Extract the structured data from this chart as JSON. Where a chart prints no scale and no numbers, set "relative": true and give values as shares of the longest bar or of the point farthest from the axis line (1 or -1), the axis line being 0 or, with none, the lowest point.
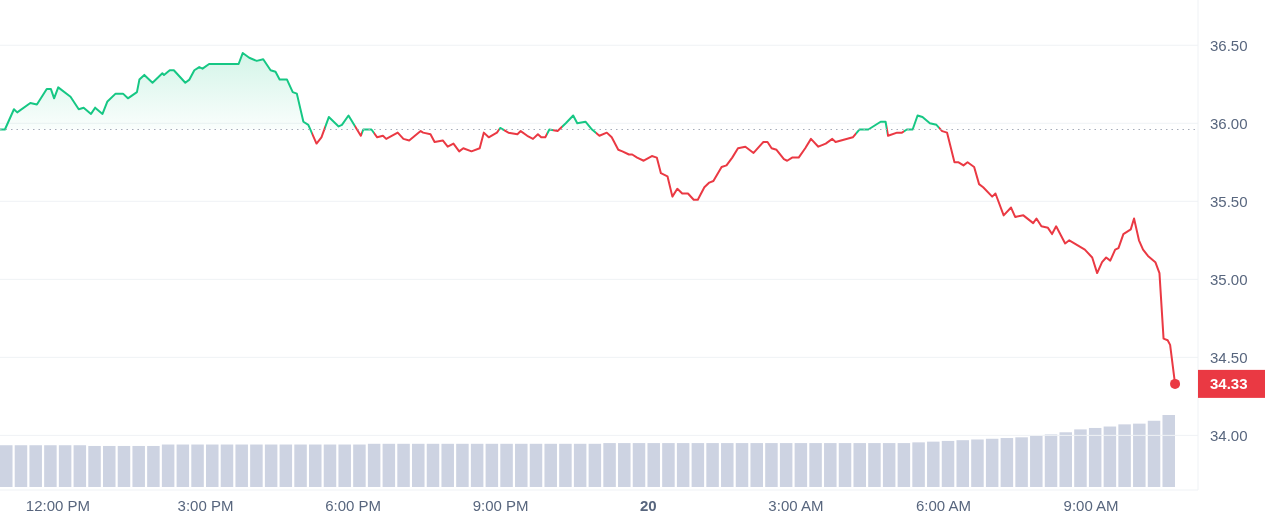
{
  "chart_data": [
    {
      "type": "area",
      "xlim": [
        "--01-19T10:50",
        "--01-20T11:11"
      ],
      "ylim": [
        33.65,
        36.79
      ],
      "xticks": [
        {
          "value": "--01-19T12:00",
          "label": "12:00 PM"
        },
        {
          "value": "--01-19T15:00",
          "label": "3:00 PM"
        },
        {
          "value": "--01-19T18:00",
          "label": "6:00 PM"
        },
        {
          "value": "--01-19T21:00",
          "label": "9:00 PM"
        },
        {
          "value": "--01-20T00:00",
          "label": "20"
        },
        {
          "value": "--01-20T03:00",
          "label": "3:00 AM"
        },
        {
          "value": "--01-20T06:00",
          "label": "6:00 AM"
        },
        {
          "value": "--01-20T09:00",
          "label": "9:00 AM"
        }
      ],
      "yticks": [
        {
          "value": 34,
          "label": "34.00"
        },
        {
          "value": 34.5,
          "label": "34.50"
        },
        {
          "value": 35,
          "label": "35.00"
        },
        {
          "value": 35.5,
          "label": "35.50"
        },
        {
          "value": 36,
          "label": "36.00"
        },
        {
          "value": 36.5,
          "label": "36.50"
        }
      ],
      "grid": "y",
      "ref_lines": [
        {
          "axis": "y",
          "value": 35.96,
          "color": "#a6acb9",
          "line_style": "dotted"
        }
      ],
      "annotations": [
        {
          "text": "34.33",
          "x": "--01-20T10:43",
          "y": 34.33
        }
      ],
      "series": [
        {
          "colors": [
            "#16c784",
            "#16c784",
            "#16c784",
            "#16c784",
            "#16c784",
            "#16c784",
            "#16c784",
            "#16c784",
            "#16c784",
            "#16c784",
            "#16c784",
            "#16c784",
            "#16c784",
            "#16c784",
            "#16c784",
            "#16c784",
            "#16c784",
            "#16c784",
            "#16c784",
            "#16c784",
            "#16c784",
            "#16c784",
            "#16c784",
            "#16c784",
            "#16c784",
            "#16c784",
            "#16c784",
            "#16c784",
            "#16c784",
            "#16c784",
            "#16c784",
            "#16c784",
            "#16c784",
            "#16c784",
            "#16c784",
            "#16c784",
            "#16c784",
            "#16c784",
            "#16c784",
            "#16c784",
            "#16c784",
            "#16c784",
            "#16c784",
            "#16c784",
            "#16c784",
            "#16c784",
            "#16c784",
            "#16c784",
            "#16c784",
            "#16c784",
            "#ea3943",
            "#ea3943",
            "#16c784",
            "#16c784",
            "#16c784",
            "#16c784",
            "#ea3943",
            "#16c784",
            "#16c784",
            "#ea3943",
            "#ea3943",
            "#ea3943",
            "#ea3943",
            "#ea3943",
            "#ea3943",
            "#ea3943",
            "#ea3943",
            "#ea3943",
            "#ea3943",
            "#ea3943",
            "#ea3943",
            "#ea3943",
            "#ea3943",
            "#ea3943",
            "#ea3943",
            "#ea3943",
            "#ea3943",
            "#ea3943",
            "#ea3943",
            "#16c784",
            "#ea3943",
            "#ea3943",
            "#ea3943",
            "#ea3943",
            "#ea3943",
            "#ea3943",
            "#ea3943",
            "#ea3943",
            "#16c784",
            "#ea3943",
            "#16c784",
            "#16c784",
            "#16c784",
            "#16c784",
            "#16c784",
            "#ea3943",
            "#ea3943",
            "#ea3943",
            "#ea3943",
            "#ea3943",
            "#ea3943",
            "#ea3943",
            "#ea3943",
            "#ea3943",
            "#ea3943",
            "#ea3943",
            "#ea3943",
            "#ea3943",
            "#ea3943",
            "#ea3943",
            "#ea3943",
            "#ea3943",
            "#ea3943",
            "#ea3943",
            "#ea3943",
            "#ea3943",
            "#ea3943",
            "#ea3943",
            "#ea3943",
            "#ea3943",
            "#ea3943",
            "#ea3943",
            "#ea3943",
            "#ea3943",
            "#ea3943",
            "#ea3943",
            "#ea3943",
            "#ea3943",
            "#ea3943",
            "#ea3943",
            "#ea3943",
            "#ea3943",
            "#ea3943",
            "#ea3943",
            "#ea3943",
            "#ea3943",
            "#ea3943",
            "#ea3943",
            "#16c784",
            "#16c784",
            "#16c784",
            "#16c784",
            "#ea3943",
            "#ea3943",
            "#ea3943",
            "#16c784",
            "#16c784",
            "#16c784",
            "#16c784",
            "#16c784",
            "#16c784",
            "#ea3943",
            "#ea3943",
            "#ea3943",
            "#ea3943",
            "#ea3943",
            "#ea3943",
            "#ea3943",
            "#ea3943",
            "#ea3943",
            "#ea3943",
            "#ea3943",
            "#ea3943",
            "#ea3943",
            "#ea3943",
            "#ea3943",
            "#ea3943",
            "#ea3943",
            "#ea3943",
            "#ea3943",
            "#ea3943",
            "#ea3943",
            "#ea3943",
            "#ea3943",
            "#ea3943",
            "#ea3943",
            "#ea3943",
            "#ea3943",
            "#ea3943",
            "#ea3943",
            "#ea3943",
            "#ea3943",
            "#ea3943",
            "#ea3943",
            "#ea3943",
            "#ea3943",
            "#ea3943",
            "#ea3943",
            "#ea3943",
            "#ea3943",
            "#ea3943",
            "#ea3943",
            "#ea3943",
            "#ea3943"
          ],
          "x": [
            "--01-19T10:50",
            "--01-19T10:56",
            "--01-19T11:07",
            "--01-19T11:11",
            "--01-19T11:27",
            "--01-19T11:35",
            "--01-19T11:47",
            "--01-19T11:52",
            "--01-19T11:56",
            "--01-19T12:01",
            "--01-19T12:16",
            "--01-19T12:26",
            "--01-19T12:32",
            "--01-19T12:41",
            "--01-19T12:46",
            "--01-19T12:55",
            "--01-19T13:01",
            "--01-19T13:11",
            "--01-19T13:20",
            "--01-19T13:26",
            "--01-19T13:37",
            "--01-19T13:40",
            "--01-19T13:46",
            "--01-19T13:56",
            "--01-19T14:08",
            "--01-19T14:10",
            "--01-19T14:17",
            "--01-19T14:22",
            "--01-19T14:36",
            "--01-19T14:41",
            "--01-19T14:47",
            "--01-19T14:53",
            "--01-19T14:57",
            "--01-19T15:05",
            "--01-19T15:17",
            "--01-19T15:28",
            "--01-19T15:35",
            "--01-19T15:41",
            "--01-19T15:46",
            "--01-19T15:54",
            "--01-19T16:03",
            "--01-19T16:11",
            "--01-19T16:20",
            "--01-19T16:26",
            "--01-19T16:31",
            "--01-19T16:40",
            "--01-19T16:47",
            "--01-19T16:52",
            "--01-19T17:00",
            "--01-19T17:06",
            "--01-19T17:16",
            "--01-19T17:22",
            "--01-19T17:31",
            "--01-19T17:43",
            "--01-19T17:47",
            "--01-19T17:55",
            "--01-19T18:10",
            "--01-19T18:13",
            "--01-19T18:23",
            "--01-19T18:30",
            "--01-19T18:37",
            "--01-19T18:41",
            "--01-19T18:55",
            "--01-19T19:02",
            "--01-19T19:09",
            "--01-19T19:23",
            "--01-19T19:26",
            "--01-19T19:35",
            "--01-19T19:40",
            "--01-19T19:50",
            "--01-19T19:56",
            "--01-19T20:03",
            "--01-19T20:10",
            "--01-19T20:15",
            "--01-19T20:25",
            "--01-19T20:35",
            "--01-19T20:40",
            "--01-19T20:46",
            "--01-19T20:56",
            "--01-19T21:00",
            "--01-19T21:10",
            "--01-19T21:21",
            "--01-19T21:25",
            "--01-19T21:33",
            "--01-19T21:40",
            "--01-19T21:46",
            "--01-19T21:50",
            "--01-19T21:55",
            "--01-19T22:00",
            "--01-19T22:10",
            "--01-19T22:20",
            "--01-19T22:29",
            "--01-19T22:34",
            "--01-19T22:44",
            "--01-19T22:52",
            "--01-19T23:01",
            "--01-19T23:10",
            "--01-19T23:16",
            "--01-19T23:24",
            "--01-19T23:29",
            "--01-19T23:37",
            "--01-19T23:41",
            "--01-19T23:47",
            "--01-19T23:55",
            "--01-20T00:05",
            "--01-20T00:11",
            "--01-20T00:16",
            "--01-20T00:24",
            "--01-20T00:30",
            "--01-20T00:36",
            "--01-20T00:42",
            "--01-20T00:49",
            "--01-20T00:56",
            "--01-20T01:01",
            "--01-20T01:09",
            "--01-20T01:15",
            "--01-20T01:20",
            "--01-20T01:30",
            "--01-20T01:36",
            "--01-20T01:43",
            "--01-20T01:50",
            "--01-20T01:59",
            "--01-20T02:09",
            "--01-20T02:21",
            "--01-20T02:26",
            "--01-20T02:31",
            "--01-20T02:37",
            "--01-20T02:46",
            "--01-20T02:50",
            "--01-20T02:56",
            "--01-20T03:04",
            "--01-20T03:12",
            "--01-20T03:19",
            "--01-20T03:28",
            "--01-20T03:37",
            "--01-20T03:45",
            "--01-20T03:49",
            "--01-20T04:10",
            "--01-20T04:18",
            "--01-20T04:29",
            "--01-20T04:44",
            "--01-20T04:50",
            "--01-20T04:53",
            "--01-20T05:04",
            "--01-20T05:10",
            "--01-20T05:16",
            "--01-20T05:23",
            "--01-20T05:29",
            "--01-20T05:35",
            "--01-20T05:44",
            "--01-20T05:52",
            "--01-20T05:59",
            "--01-20T06:05",
            "--01-20T06:14",
            "--01-20T06:19",
            "--01-20T06:25",
            "--01-20T06:30",
            "--01-20T06:38",
            "--01-20T06:44",
            "--01-20T06:49",
            "--01-20T07:00",
            "--01-20T07:04",
            "--01-20T07:14",
            "--01-20T07:23",
            "--01-20T07:28",
            "--01-20T07:38",
            "--01-20T07:50",
            "--01-20T07:54",
            "--01-20T08:00",
            "--01-20T08:08",
            "--01-20T08:13",
            "--01-20T08:18",
            "--01-20T08:29",
            "--01-20T08:34",
            "--01-20T08:53",
            "--01-20T09:02",
            "--01-20T09:08",
            "--01-20T09:14",
            "--01-20T09:19",
            "--01-20T09:24",
            "--01-20T09:30",
            "--01-20T09:34",
            "--01-20T09:40",
            "--01-20T09:49",
            "--01-20T09:53",
            "--01-20T09:59",
            "--01-20T10:04",
            "--01-20T10:10",
            "--01-20T10:19",
            "--01-20T10:24",
            "--01-20T10:29",
            "--01-20T10:34",
            "--01-20T10:37",
            "--01-20T10:43"
          ],
          "values": [
            35.96,
            35.96,
            36.09,
            36.07,
            36.13,
            36.12,
            36.22,
            36.22,
            36.16,
            36.23,
            36.17,
            36.09,
            36.1,
            36.06,
            36.1,
            36.06,
            36.14,
            36.19,
            36.19,
            36.16,
            36.2,
            36.28,
            36.31,
            36.26,
            36.32,
            36.31,
            36.34,
            36.34,
            36.26,
            36.28,
            36.34,
            36.36,
            36.35,
            36.38,
            36.38,
            36.38,
            36.38,
            36.38,
            36.45,
            36.42,
            36.4,
            36.41,
            36.34,
            36.33,
            36.28,
            36.28,
            36.2,
            36.19,
            36.01,
            35.99,
            35.87,
            35.91,
            36.04,
            35.98,
            35.99,
            36.05,
            35.92,
            35.96,
            35.96,
            35.91,
            35.92,
            35.9,
            35.94,
            35.9,
            35.89,
            35.95,
            35.94,
            35.93,
            35.88,
            35.89,
            35.85,
            35.87,
            35.82,
            35.84,
            35.82,
            35.84,
            35.94,
            35.91,
            35.94,
            35.97,
            35.94,
            35.93,
            35.95,
            35.92,
            35.9,
            35.93,
            35.91,
            35.91,
            35.96,
            35.95,
            36.0,
            36.05,
            36.0,
            36.01,
            35.96,
            35.92,
            35.94,
            35.91,
            35.83,
            35.82,
            35.8,
            35.8,
            35.78,
            35.76,
            35.79,
            35.78,
            35.68,
            35.66,
            35.53,
            35.58,
            35.55,
            35.55,
            35.51,
            35.51,
            35.59,
            35.62,
            35.63,
            35.72,
            35.73,
            35.78,
            35.84,
            35.85,
            35.81,
            35.88,
            35.88,
            35.84,
            35.83,
            35.77,
            35.76,
            35.78,
            35.78,
            35.84,
            35.9,
            35.85,
            35.87,
            35.9,
            35.88,
            35.91,
            35.96,
            35.96,
            36.01,
            36.01,
            35.92,
            35.94,
            35.94,
            35.96,
            35.96,
            36.05,
            36.04,
            36.0,
            35.99,
            35.95,
            35.94,
            35.75,
            35.75,
            35.73,
            35.75,
            35.72,
            35.61,
            35.59,
            35.53,
            35.55,
            35.41,
            35.46,
            35.4,
            35.41,
            35.36,
            35.39,
            35.34,
            35.33,
            35.29,
            35.34,
            35.23,
            35.25,
            35.19,
            35.14,
            35.04,
            35.11,
            35.14,
            35.12,
            35.19,
            35.2,
            35.29,
            35.32,
            35.39,
            35.25,
            35.19,
            35.15,
            35.11,
            35.04,
            34.62,
            34.61,
            34.58,
            34.33
          ]
        }
      ]
    },
    {
      "type": "bar",
      "relative": true,
      "tick_labels": false,
      "categories": [
        null,
        null,
        null,
        null,
        null,
        null,
        null,
        null,
        null,
        null,
        null,
        null,
        null,
        null,
        null,
        null,
        null,
        null,
        null,
        null,
        null,
        null,
        null,
        null,
        null,
        null,
        null,
        null,
        null,
        null,
        null,
        null,
        null,
        null,
        null,
        null,
        null,
        null,
        null,
        null,
        null,
        null,
        null,
        null,
        null,
        null,
        null,
        null,
        null,
        null,
        null,
        null,
        null,
        null,
        null,
        null,
        null,
        null,
        null,
        null,
        null,
        null,
        null,
        null,
        null,
        null,
        null,
        null,
        null,
        null,
        null,
        null,
        null,
        null,
        null,
        null,
        null,
        null,
        null,
        null
      ],
      "series": [
        {
          "color": "#cdd3e2",
          "values": [
            0.58,
            0.58,
            0.58,
            0.58,
            0.58,
            0.58,
            0.57,
            0.57,
            0.57,
            0.57,
            0.57,
            0.59,
            0.59,
            0.59,
            0.59,
            0.59,
            0.59,
            0.59,
            0.59,
            0.59,
            0.59,
            0.59,
            0.59,
            0.59,
            0.59,
            0.6,
            0.6,
            0.6,
            0.6,
            0.6,
            0.6,
            0.6,
            0.6,
            0.6,
            0.6,
            0.6,
            0.6,
            0.6,
            0.6,
            0.6,
            0.6,
            0.61,
            0.61,
            0.61,
            0.61,
            0.61,
            0.61,
            0.61,
            0.61,
            0.61,
            0.61,
            0.61,
            0.61,
            0.61,
            0.61,
            0.61,
            0.61,
            0.61,
            0.61,
            0.61,
            0.61,
            0.61,
            0.62,
            0.63,
            0.64,
            0.65,
            0.66,
            0.67,
            0.68,
            0.69,
            0.71,
            0.73,
            0.76,
            0.8,
            0.82,
            0.84,
            0.87,
            0.88,
            0.92,
            1
          ]
        }
      ]
    }
  ]
}
